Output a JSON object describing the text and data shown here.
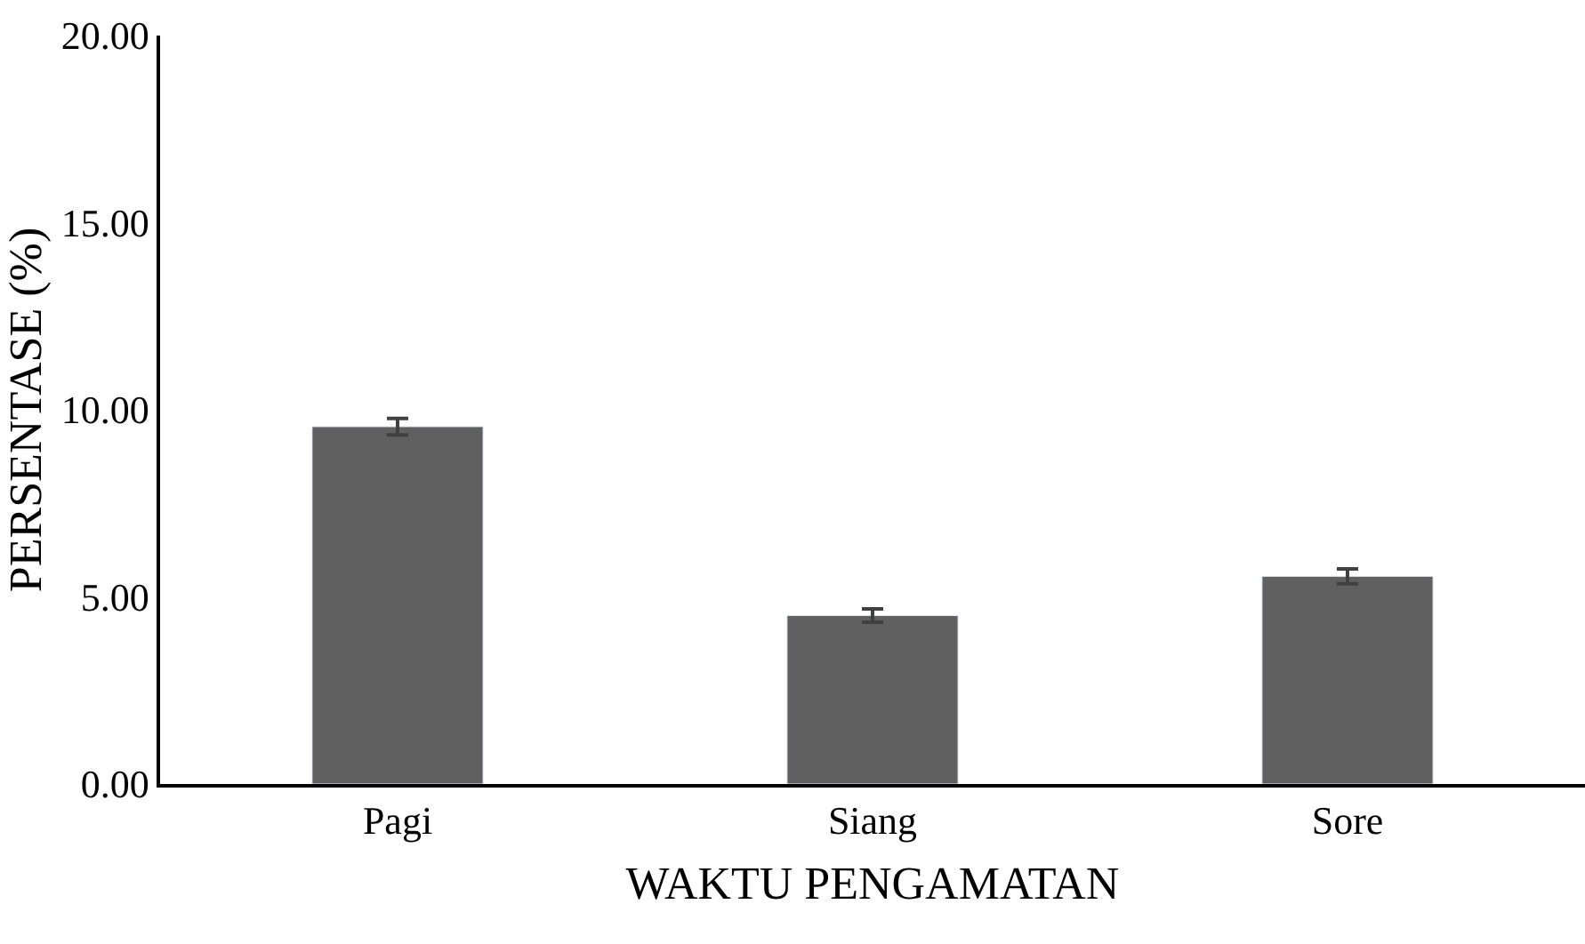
{
  "chart_data": {
    "type": "bar",
    "xlabel": "WAKTU PENGAMATAN",
    "ylabel": "PERSENTASE (%)",
    "categories": [
      "Pagi",
      "Siang",
      "Sore"
    ],
    "values": [
      9.55,
      4.5,
      5.55
    ],
    "errors": [
      0.22,
      0.18,
      0.2
    ],
    "color": "#606060",
    "ylim": [
      0,
      20
    ],
    "yticks": [
      {
        "value": 0,
        "label": "0.00"
      },
      {
        "value": 5,
        "label": "5.00"
      },
      {
        "value": 10,
        "label": "10.00"
      },
      {
        "value": 15,
        "label": "15.00"
      },
      {
        "value": 20,
        "label": "20.00"
      }
    ],
    "legend": false
  }
}
